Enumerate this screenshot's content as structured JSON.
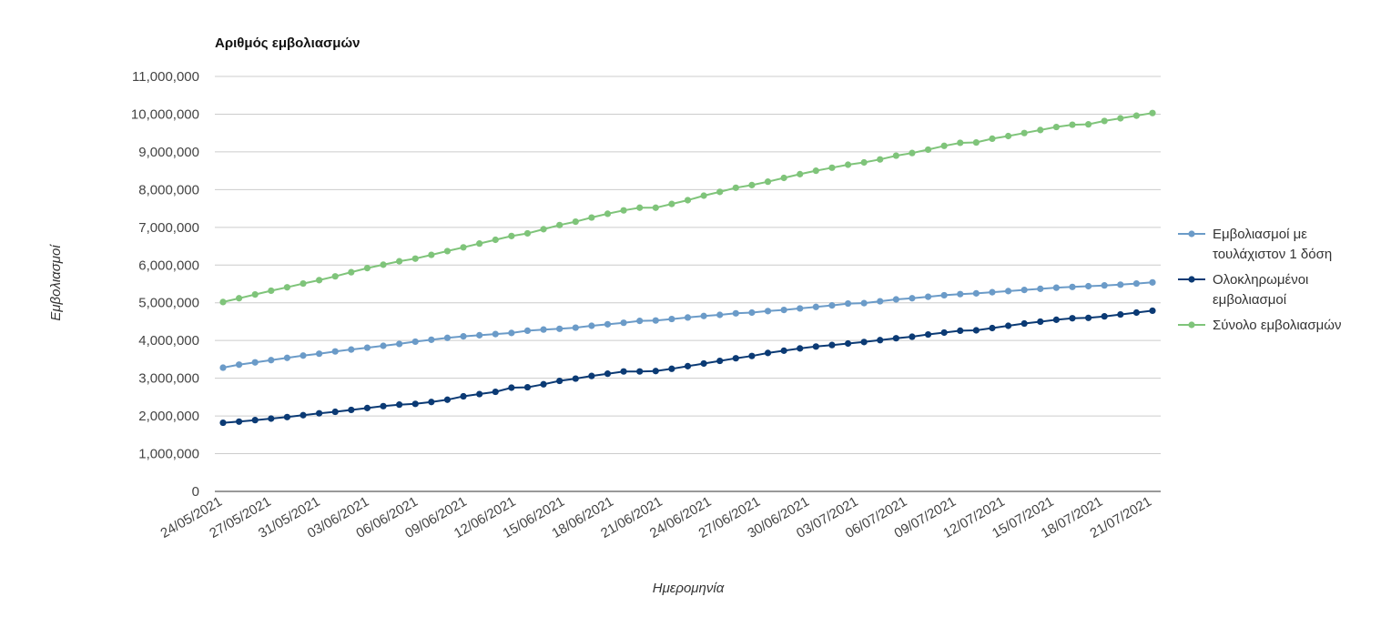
{
  "chart_data": {
    "type": "line",
    "title": "Αριθμός εμβολιασμών",
    "xlabel": "Ημερομηνία",
    "ylabel": "Εμβολιασμοί",
    "ylim": [
      0,
      11000000
    ],
    "yticks": [
      "0",
      "1,000,000",
      "2,000,000",
      "3,000,000",
      "4,000,000",
      "5,000,000",
      "6,000,000",
      "7,000,000",
      "8,000,000",
      "9,000,000",
      "10,000,000",
      "11,000,000"
    ],
    "grid": true,
    "legend_position": "right",
    "x_tick_labels": [
      "24/05/2021",
      "27/05/2021",
      "31/05/2021",
      "03/06/2021",
      "06/06/2021",
      "09/06/2021",
      "12/06/2021",
      "15/06/2021",
      "18/06/2021",
      "21/06/2021",
      "24/06/2021",
      "27/06/2021",
      "30/06/2021",
      "03/07/2021",
      "06/07/2021",
      "09/07/2021",
      "12/07/2021",
      "15/07/2021",
      "18/07/2021",
      "21/07/2021"
    ],
    "series": [
      {
        "name": "Εμβολιασμοί με τουλάχιστον 1 δόση",
        "color": "#6b9bc8",
        "values": [
          3280000,
          3360000,
          3420000,
          3480000,
          3540000,
          3600000,
          3650000,
          3710000,
          3760000,
          3810000,
          3860000,
          3910000,
          3970000,
          4020000,
          4070000,
          4110000,
          4140000,
          4170000,
          4200000,
          4260000,
          4290000,
          4310000,
          4340000,
          4390000,
          4430000,
          4470000,
          4520000,
          4530000,
          4570000,
          4610000,
          4650000,
          4680000,
          4720000,
          4740000,
          4780000,
          4810000,
          4850000,
          4890000,
          4930000,
          4980000,
          4990000,
          5040000,
          5090000,
          5120000,
          5160000,
          5200000,
          5230000,
          5250000,
          5280000,
          5310000,
          5340000,
          5370000,
          5400000,
          5420000,
          5440000,
          5460000,
          5480000,
          5510000,
          5540000
        ]
      },
      {
        "name": "Ολοκληρωμένοι εμβολιασμοί",
        "color": "#0b3a74",
        "values": [
          1820000,
          1850000,
          1890000,
          1930000,
          1970000,
          2020000,
          2070000,
          2110000,
          2160000,
          2210000,
          2260000,
          2300000,
          2320000,
          2370000,
          2430000,
          2520000,
          2580000,
          2640000,
          2750000,
          2760000,
          2840000,
          2930000,
          2990000,
          3060000,
          3120000,
          3180000,
          3180000,
          3190000,
          3250000,
          3320000,
          3390000,
          3460000,
          3530000,
          3590000,
          3670000,
          3730000,
          3790000,
          3840000,
          3880000,
          3920000,
          3960000,
          4010000,
          4060000,
          4100000,
          4160000,
          4210000,
          4260000,
          4270000,
          4330000,
          4390000,
          4450000,
          4500000,
          4550000,
          4590000,
          4600000,
          4640000,
          4690000,
          4740000,
          4790000
        ]
      },
      {
        "name": "Σύνολο εμβολιασμών",
        "color": "#7fc47a",
        "values": [
          5020000,
          5120000,
          5220000,
          5320000,
          5410000,
          5510000,
          5600000,
          5700000,
          5810000,
          5920000,
          6010000,
          6100000,
          6170000,
          6270000,
          6370000,
          6470000,
          6570000,
          6670000,
          6770000,
          6840000,
          6950000,
          7060000,
          7150000,
          7260000,
          7360000,
          7450000,
          7520000,
          7520000,
          7620000,
          7720000,
          7840000,
          7940000,
          8050000,
          8120000,
          8210000,
          8310000,
          8410000,
          8500000,
          8580000,
          8660000,
          8720000,
          8800000,
          8900000,
          8970000,
          9060000,
          9160000,
          9240000,
          9250000,
          9350000,
          9420000,
          9500000,
          9580000,
          9660000,
          9720000,
          9730000,
          9820000,
          9890000,
          9960000,
          10030000
        ]
      }
    ],
    "legend": [
      [
        "Εμβολιασμοί με",
        "τουλάχιστον 1 δόση"
      ],
      [
        "Ολοκληρωμένοι",
        "εμβολιασμοί"
      ],
      [
        "Σύνολο εμβολιασμών"
      ]
    ]
  }
}
